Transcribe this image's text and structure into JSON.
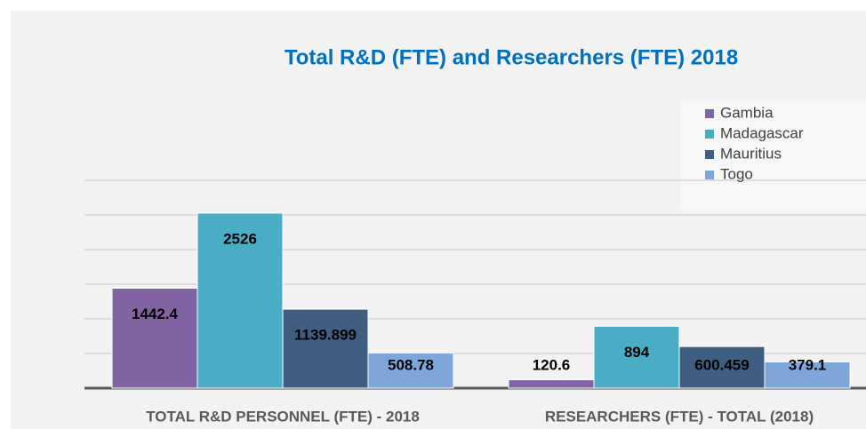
{
  "chart_data": {
    "type": "bar",
    "title": "Total R&D (FTE) and Researchers (FTE) 2018",
    "categories": [
      "TOTAL R&D PERSONNEL (FTE) - 2018",
      "RESEARCHERS (FTE) - TOTAL  (2018)"
    ],
    "series": [
      {
        "name": "Gambia",
        "color": "#8064a2",
        "values": [
          1442.4,
          120.6
        ]
      },
      {
        "name": "Madagascar",
        "color": "#4bacc6",
        "values": [
          2526,
          894
        ]
      },
      {
        "name": "Mauritius",
        "color": "#3f5e82",
        "values": [
          1139.899,
          600.459
        ]
      },
      {
        "name": "Togo",
        "color": "#7ea6d8",
        "values": [
          508.78,
          379.1
        ]
      }
    ],
    "ylim": [
      0,
      3000
    ],
    "yticks": [
      0,
      500,
      1000,
      1500,
      2000,
      2500,
      3000
    ],
    "grid": true,
    "legend": "upper right"
  }
}
